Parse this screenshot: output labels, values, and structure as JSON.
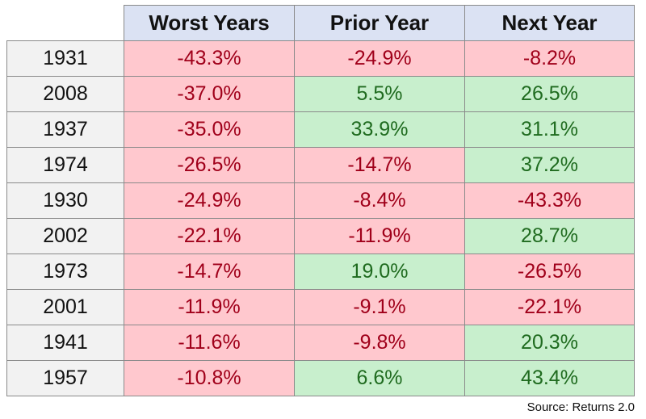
{
  "table": {
    "headers": [
      "",
      "Worst Years",
      "Prior Year",
      "Next Year"
    ],
    "rows": [
      {
        "year": "1931",
        "worst": "-43.3%",
        "prior": "-24.9%",
        "next": "-8.2%"
      },
      {
        "year": "2008",
        "worst": "-37.0%",
        "prior": "5.5%",
        "next": "26.5%"
      },
      {
        "year": "1937",
        "worst": "-35.0%",
        "prior": "33.9%",
        "next": "31.1%"
      },
      {
        "year": "1974",
        "worst": "-26.5%",
        "prior": "-14.7%",
        "next": "37.2%"
      },
      {
        "year": "1930",
        "worst": "-24.9%",
        "prior": "-8.4%",
        "next": "-43.3%"
      },
      {
        "year": "2002",
        "worst": "-22.1%",
        "prior": "-11.9%",
        "next": "28.7%"
      },
      {
        "year": "1973",
        "worst": "-14.7%",
        "prior": "19.0%",
        "next": "-26.5%"
      },
      {
        "year": "2001",
        "worst": "-11.9%",
        "prior": "-9.1%",
        "next": "-22.1%"
      },
      {
        "year": "1941",
        "worst": "-11.6%",
        "prior": "-9.8%",
        "next": "20.3%"
      },
      {
        "year": "1957",
        "worst": "-10.8%",
        "prior": "6.6%",
        "next": "43.4%"
      }
    ]
  },
  "source": "Source: Returns 2.0",
  "colors": {
    "header_bg": "#dbe2f3",
    "negative_bg": "#ffc8ce",
    "negative_text": "#a0001a",
    "positive_bg": "#c8efcd",
    "positive_text": "#1f6b1f",
    "year_bg": "#f2f2f2"
  }
}
